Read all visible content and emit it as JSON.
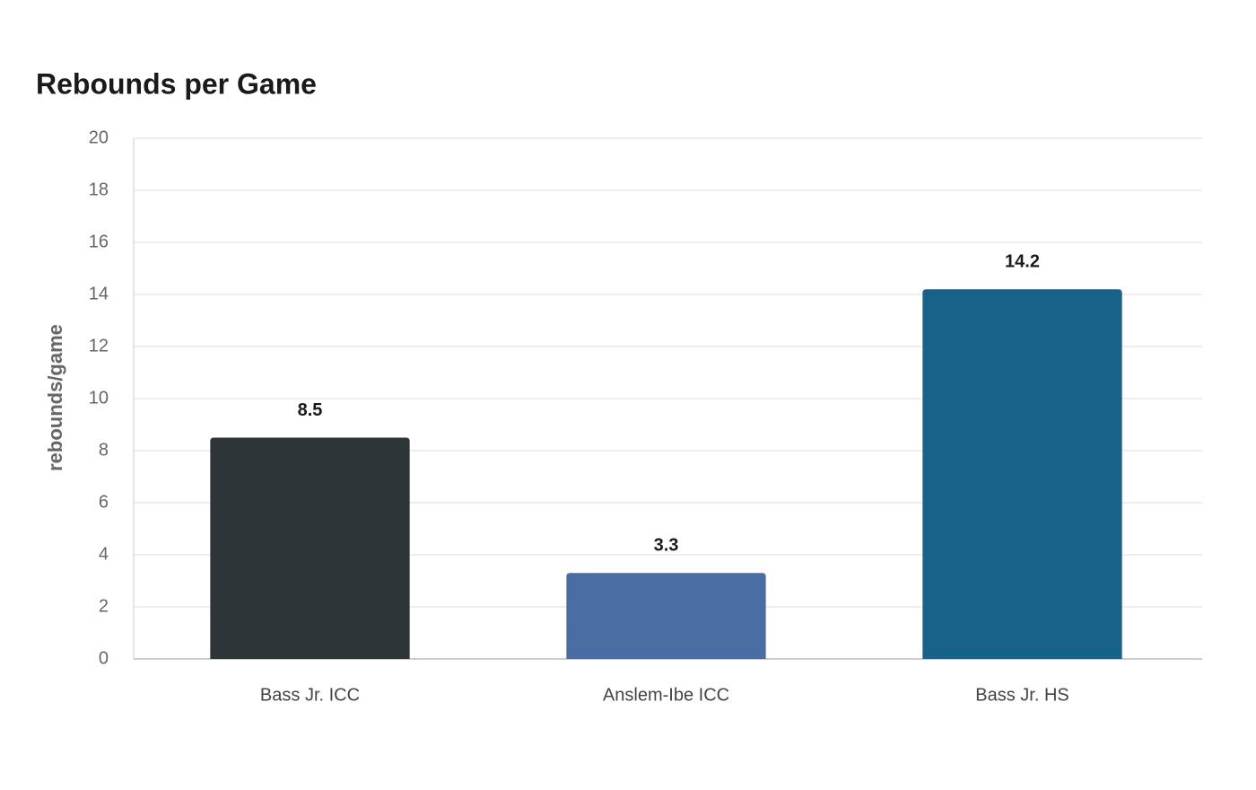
{
  "chart_data": {
    "type": "bar",
    "title": "Rebounds per Game",
    "y_label": "rebounds/game",
    "categories": [
      "Bass Jr. ICC",
      "Anslem-Ibe ICC",
      "Bass Jr. HS"
    ],
    "values": [
      8.5,
      3.3,
      14.2
    ],
    "colors": [
      "#2e3538",
      "#4a6ea4",
      "#186289"
    ],
    "ylim": [
      0,
      20
    ],
    "yticks": [
      0,
      2,
      4,
      6,
      8,
      10,
      12,
      14,
      16,
      18,
      20
    ],
    "grid": true
  }
}
